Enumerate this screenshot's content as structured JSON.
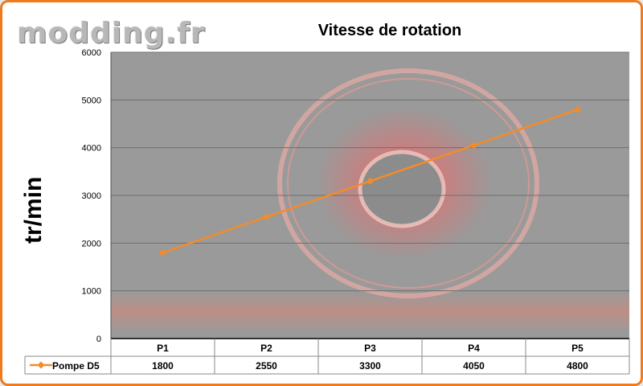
{
  "watermark": "modding.fr",
  "colors": {
    "frame": "#f07a1c",
    "series": "#f28c2a",
    "plot_bg": "#9a9a9a"
  },
  "chart_data": {
    "type": "line",
    "title": "Vitesse de rotation",
    "ylabel": "tr/min",
    "xlabel": "",
    "categories": [
      "P1",
      "P2",
      "P3",
      "P4",
      "P5"
    ],
    "ylim": [
      0,
      6000
    ],
    "yticks": [
      0,
      1000,
      2000,
      3000,
      4000,
      5000,
      6000
    ],
    "grid": true,
    "legend": "data-table",
    "series": [
      {
        "name": "Pompe D5",
        "values": [
          1800,
          2550,
          3300,
          4050,
          4800
        ]
      }
    ]
  }
}
